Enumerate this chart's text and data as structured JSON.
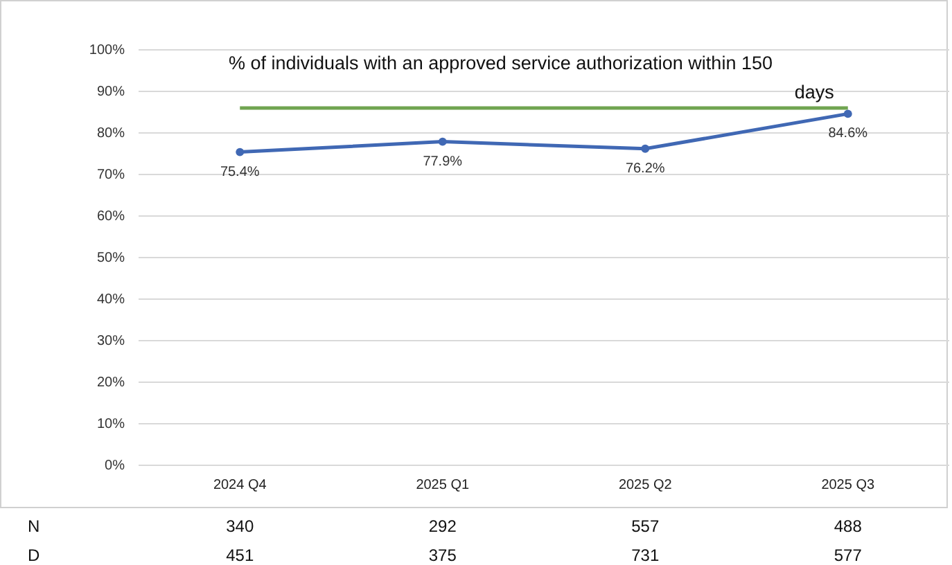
{
  "chart_data": {
    "type": "line",
    "title": "% of individuals with an approved service authorization within 150 days",
    "categories": [
      "2024 Q4",
      "2025 Q1",
      "2025 Q2",
      "2025 Q3"
    ],
    "series": [
      {
        "color": "#4068b4",
        "values": [
          75.4,
          77.9,
          76.2,
          84.6
        ],
        "value_labels": [
          "75.4%",
          "77.9%",
          "76.2%",
          "84.6%"
        ]
      }
    ],
    "ylim": [
      0,
      100
    ],
    "yticks": [
      {
        "value": 0,
        "label": "0%"
      },
      {
        "value": 10,
        "label": "10%"
      },
      {
        "value": 20,
        "label": "20%"
      },
      {
        "value": 30,
        "label": "30%"
      },
      {
        "value": 40,
        "label": "40%"
      },
      {
        "value": 50,
        "label": "50%"
      },
      {
        "value": 60,
        "label": "60%"
      },
      {
        "value": 70,
        "label": "70%"
      },
      {
        "value": 80,
        "label": "80%"
      },
      {
        "value": 90,
        "label": "90%"
      },
      {
        "value": 100,
        "label": "100%"
      }
    ],
    "grid": "y",
    "marker": "circle",
    "line_style": "solid",
    "ref_lines": [
      {
        "axis": "y",
        "value": 86,
        "color": "#70a450"
      }
    ],
    "annotations": [
      "N",
      "340",
      "292",
      "557",
      "488",
      "D",
      "451",
      "375",
      "731",
      "577"
    ]
  }
}
